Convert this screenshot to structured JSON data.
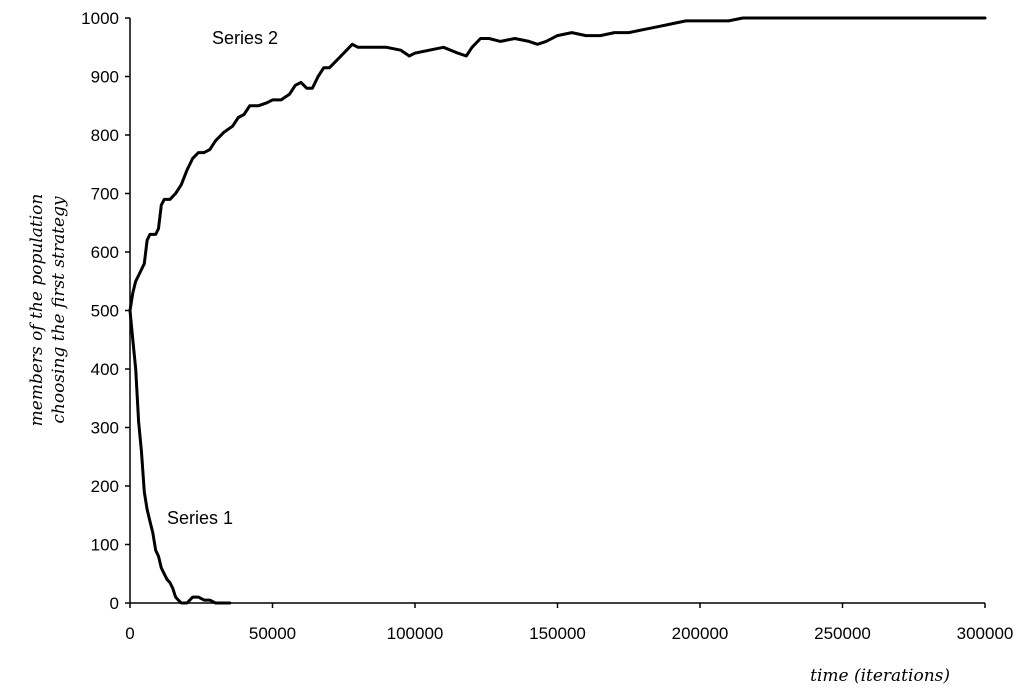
{
  "chart_data": {
    "type": "line",
    "title": "",
    "xlabel": "time (iterations)",
    "ylabel_lines": [
      "members of the population",
      "choosing the first strategy"
    ],
    "xlim": [
      0,
      300000
    ],
    "ylim": [
      0,
      1000
    ],
    "x_ticks": [
      0,
      50000,
      100000,
      150000,
      200000,
      250000,
      300000
    ],
    "y_ticks": [
      0,
      100,
      200,
      300,
      400,
      500,
      600,
      700,
      800,
      900,
      1000
    ],
    "grid": false,
    "legend": "none",
    "line_color": "#000000",
    "series": [
      {
        "name": "Series 1",
        "x": [
          0,
          1000,
          2000,
          3000,
          4000,
          5000,
          6000,
          7000,
          8000,
          9000,
          10000,
          11000,
          12000,
          13000,
          14000,
          15000,
          16000,
          17000,
          18000,
          19000,
          20000,
          22000,
          24000,
          26000,
          28000,
          30000,
          32000,
          35000
        ],
        "y": [
          500,
          450,
          400,
          310,
          260,
          190,
          160,
          140,
          120,
          90,
          80,
          60,
          50,
          40,
          35,
          25,
          10,
          5,
          0,
          0,
          0,
          10,
          10,
          5,
          5,
          0,
          0,
          0
        ]
      },
      {
        "name": "Series 2",
        "x": [
          0,
          1000,
          2000,
          3000,
          4000,
          5000,
          6000,
          7000,
          9000,
          10000,
          11000,
          12000,
          14000,
          16000,
          18000,
          20000,
          22000,
          24000,
          26000,
          28000,
          30000,
          33000,
          36000,
          38000,
          40000,
          42000,
          45000,
          48000,
          50000,
          53000,
          56000,
          58000,
          60000,
          62000,
          64000,
          66000,
          68000,
          70000,
          73000,
          76000,
          78000,
          80000,
          85000,
          90000,
          95000,
          98000,
          100000,
          105000,
          110000,
          115000,
          118000,
          120000,
          123000,
          126000,
          130000,
          135000,
          140000,
          143000,
          146000,
          150000,
          155000,
          160000,
          165000,
          170000,
          175000,
          180000,
          185000,
          190000,
          195000,
          200000,
          205000,
          210000,
          215000,
          220000,
          230000,
          250000,
          300000
        ],
        "y": [
          500,
          530,
          550,
          560,
          570,
          580,
          620,
          630,
          630,
          640,
          680,
          690,
          690,
          700,
          715,
          740,
          760,
          770,
          770,
          775,
          790,
          805,
          815,
          830,
          835,
          850,
          850,
          855,
          860,
          860,
          870,
          885,
          890,
          880,
          880,
          900,
          915,
          915,
          930,
          945,
          955,
          950,
          950,
          950,
          945,
          935,
          940,
          945,
          950,
          940,
          935,
          950,
          965,
          965,
          960,
          965,
          960,
          955,
          960,
          970,
          975,
          970,
          970,
          975,
          975,
          980,
          985,
          990,
          995,
          995,
          995,
          995,
          1000,
          1000,
          1000,
          1000,
          1000
        ]
      }
    ]
  }
}
